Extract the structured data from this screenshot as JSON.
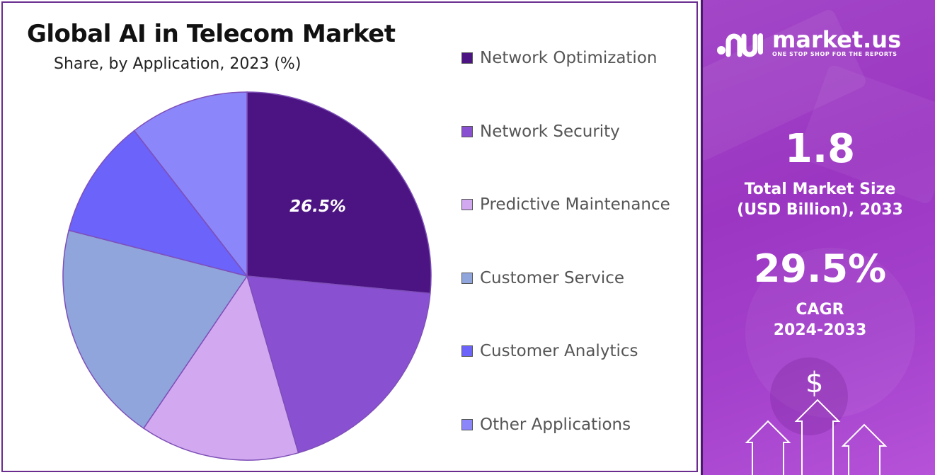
{
  "chart_data": {
    "type": "pie",
    "title": "Global AI in Telecom Market",
    "subtitle": "Share, by Application, 2023 (%)",
    "slices": [
      {
        "name": "Network Optimization",
        "value": 26.5,
        "color": "#4b1482",
        "label": "26.5%"
      },
      {
        "name": "Network Security",
        "value": 19.0,
        "color": "#8a50d2",
        "label": ""
      },
      {
        "name": "Predictive Maintenance",
        "value": 14.0,
        "color": "#d2a9f0",
        "label": ""
      },
      {
        "name": "Customer Service",
        "value": 19.5,
        "color": "#8fa5dc",
        "label": ""
      },
      {
        "name": "Customer Analytics",
        "value": 10.5,
        "color": "#6b63fa",
        "label": ""
      },
      {
        "name": "Other Applications",
        "value": 10.5,
        "color": "#8b87fb",
        "label": ""
      }
    ],
    "legend_position": "right"
  },
  "sidebar": {
    "logo_text": "market.us",
    "logo_tagline": "ONE STOP SHOP FOR THE REPORTS",
    "market_size_value": "1.8",
    "market_size_label_1": "Total Market Size",
    "market_size_label_2": "(USD Billion), 2033",
    "cagr_value": "29.5%",
    "cagr_label_1": "CAGR",
    "cagr_label_2": "2024-2033",
    "dollar_symbol": "$",
    "icons": [
      "logo-icon",
      "dollar-icon",
      "arrow-up-icon"
    ],
    "colors": {
      "accent": "#a347c7",
      "border": "#6a2c8f"
    }
  }
}
